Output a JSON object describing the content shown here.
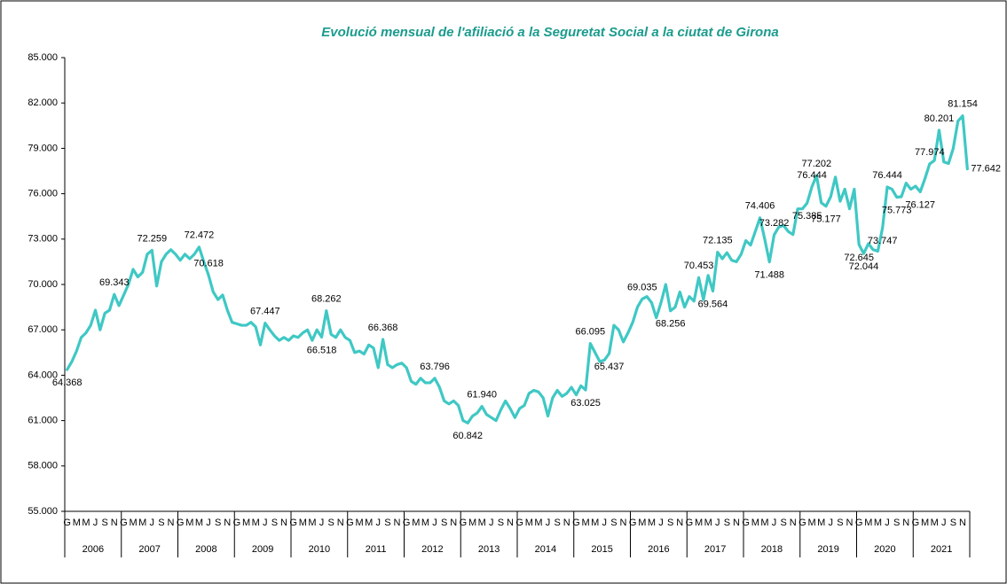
{
  "chart_data": {
    "type": "line",
    "title": "Evolució mensual de l'afiliació a la Seguretat Social a la ciutat de Girona",
    "categories": [
      "G",
      null,
      "M",
      null,
      "M",
      null,
      "J",
      null,
      "S",
      null,
      "N",
      null,
      "G",
      null,
      "M",
      null,
      "M",
      null,
      "J",
      null,
      "S",
      null,
      "N",
      null,
      "G",
      null,
      "M",
      null,
      "M",
      null,
      "J",
      null,
      "S",
      null,
      "N",
      null,
      "G",
      null,
      "M",
      null,
      "M",
      null,
      "J",
      null,
      "S",
      null,
      "N",
      null,
      "G",
      null,
      "M",
      null,
      "M",
      null,
      "J",
      null,
      "S",
      null,
      "N",
      null,
      "G",
      null,
      "M",
      null,
      "M",
      null,
      "J",
      null,
      "S",
      null,
      "N",
      null,
      "G",
      null,
      "M",
      null,
      "M",
      null,
      "J",
      null,
      "S",
      null,
      "N",
      null,
      "G",
      null,
      "M",
      null,
      "M",
      null,
      "J",
      null,
      "S",
      null,
      "N",
      null,
      "G",
      null,
      "M",
      null,
      "M",
      null,
      "J",
      null,
      "S",
      null,
      "N",
      null,
      "G",
      null,
      "M",
      null,
      "M",
      null,
      "J",
      null,
      "S",
      null,
      "N",
      null,
      "G",
      null,
      "M",
      null,
      "M",
      null,
      "J",
      null,
      "S",
      null,
      "N",
      null,
      "G",
      null,
      "M",
      null,
      "M",
      null,
      "J",
      null,
      "S",
      null,
      "N",
      null,
      "G",
      null,
      "M",
      null,
      "M",
      null,
      "J",
      null,
      "S",
      null,
      "N",
      null,
      "G",
      null,
      "M",
      null,
      "M",
      null,
      "J",
      null,
      "S",
      null,
      "N",
      null,
      "G",
      null,
      "M",
      null,
      "M",
      null,
      "J",
      null,
      "S",
      null,
      "N",
      null,
      "G",
      null,
      "M",
      null,
      "M",
      null,
      "J",
      null,
      "S",
      null,
      "N",
      null
    ],
    "years": [
      "2006",
      "2007",
      "2008",
      "2009",
      "2010",
      "2011",
      "2012",
      "2013",
      "2014",
      "2015",
      "2016",
      "2017",
      "2018",
      "2019",
      "2020",
      "2021"
    ],
    "color": "#3fc8c4",
    "values": [
      64368,
      64900,
      65600,
      66500,
      66800,
      67300,
      68300,
      67000,
      68100,
      68300,
      69343,
      68600,
      69300,
      70000,
      71000,
      70500,
      70800,
      72000,
      72259,
      69900,
      71500,
      72000,
      72300,
      72000,
      71600,
      72000,
      71700,
      72000,
      72472,
      71500,
      70618,
      69500,
      69000,
      69300,
      68300,
      67500,
      67400,
      67300,
      67300,
      67500,
      67200,
      66000,
      67447,
      67000,
      66600,
      66300,
      66500,
      66300,
      66600,
      66500,
      66800,
      67000,
      66300,
      67000,
      66518,
      68262,
      66700,
      66500,
      67000,
      66500,
      66300,
      65500,
      65600,
      65400,
      66000,
      65800,
      64500,
      66368,
      64700,
      64500,
      64700,
      64800,
      64500,
      63600,
      63400,
      63800,
      63500,
      63500,
      63796,
      63200,
      62300,
      62100,
      62300,
      62000,
      61000,
      60842,
      61300,
      61500,
      61940,
      61400,
      61200,
      61000,
      61700,
      62300,
      61800,
      61200,
      61800,
      62000,
      62800,
      63000,
      62900,
      62500,
      61300,
      62500,
      63000,
      62600,
      62800,
      63200,
      62700,
      63300,
      63025,
      66095,
      65500,
      64900,
      65000,
      65437,
      67300,
      67000,
      66200,
      66800,
      67500,
      68500,
      69035,
      69200,
      68800,
      67800,
      68800,
      70000,
      68256,
      68500,
      69500,
      68500,
      69200,
      68900,
      70453,
      69000,
      70600,
      69564,
      72135,
      71700,
      72100,
      71600,
      71500,
      72000,
      72900,
      72600,
      73500,
      74406,
      73000,
      71488,
      73282,
      73800,
      73900,
      73500,
      73300,
      75000,
      75000,
      75385,
      76444,
      77202,
      75400,
      75177,
      75800,
      77100,
      75500,
      76300,
      75000,
      76300,
      72645,
      72044,
      72700,
      72300,
      72200,
      73747,
      76444,
      76300,
      75773,
      75800,
      76700,
      76300,
      76500,
      76127,
      77000,
      77974,
      78200,
      80201,
      78100,
      78000,
      79000,
      80800,
      81154,
      77642
    ],
    "value_labels": [
      "64.368",
      null,
      null,
      null,
      null,
      null,
      null,
      null,
      null,
      null,
      "69.343",
      null,
      null,
      null,
      null,
      null,
      null,
      null,
      "72.259",
      null,
      null,
      null,
      null,
      null,
      null,
      null,
      null,
      null,
      "72.472",
      null,
      "70.618",
      null,
      null,
      null,
      null,
      null,
      null,
      null,
      null,
      null,
      null,
      null,
      "67.447",
      null,
      null,
      null,
      null,
      null,
      null,
      null,
      null,
      null,
      null,
      null,
      "66.518",
      "68.262",
      null,
      null,
      null,
      null,
      null,
      null,
      null,
      null,
      null,
      null,
      null,
      "66.368",
      null,
      null,
      null,
      null,
      null,
      null,
      null,
      null,
      null,
      null,
      "63.796",
      null,
      null,
      null,
      null,
      null,
      null,
      "60.842",
      null,
      null,
      "61.940",
      null,
      null,
      null,
      null,
      null,
      null,
      null,
      null,
      null,
      null,
      null,
      null,
      null,
      null,
      null,
      null,
      null,
      null,
      null,
      null,
      null,
      "63.025",
      "66.095",
      null,
      null,
      null,
      "65.437",
      null,
      null,
      null,
      null,
      null,
      null,
      "69.035",
      null,
      null,
      null,
      null,
      null,
      "68.256",
      null,
      null,
      null,
      null,
      null,
      "70.453",
      null,
      null,
      "69.564",
      "72.135",
      null,
      null,
      null,
      null,
      null,
      null,
      null,
      null,
      "74.406",
      null,
      "71.488",
      "73.282",
      null,
      null,
      null,
      null,
      null,
      null,
      "75.385",
      "76.444",
      "77.202",
      null,
      "75.177",
      null,
      null,
      null,
      null,
      null,
      null,
      "72.645",
      "72.044",
      null,
      null,
      null,
      "73.747",
      "76.444",
      null,
      "75.773",
      null,
      null,
      null,
      null,
      "76.127",
      null,
      "77.974",
      null,
      "80.201",
      null,
      null,
      null,
      null,
      "81.154",
      "77.642"
    ],
    "ylim": [
      55000,
      85000
    ],
    "yticks": [
      {
        "value": 55000,
        "label": "55.000"
      },
      {
        "value": 58000,
        "label": "58.000"
      },
      {
        "value": 61000,
        "label": "61.000"
      },
      {
        "value": 64000,
        "label": "64.000"
      },
      {
        "value": 67000,
        "label": "67.000"
      },
      {
        "value": 70000,
        "label": "70.000"
      },
      {
        "value": 73000,
        "label": "73.000"
      },
      {
        "value": 76000,
        "label": "76.000"
      },
      {
        "value": 79000,
        "label": "79.000"
      },
      {
        "value": 82000,
        "label": "82.000"
      },
      {
        "value": 85000,
        "label": "85.000"
      }
    ],
    "grid": false
  }
}
